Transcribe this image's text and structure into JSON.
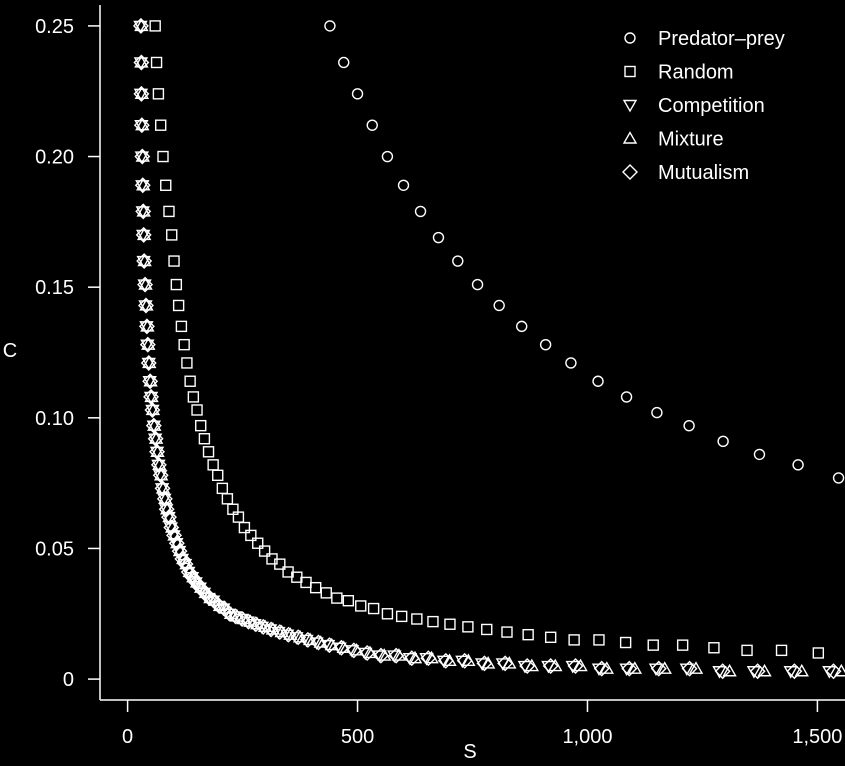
{
  "chart_data": {
    "type": "scatter",
    "xlabel": "S",
    "ylabel": "C",
    "xlim": [
      -60,
      1560
    ],
    "ylim": [
      -0.008,
      0.258
    ],
    "x_ticks": [
      {
        "value": 0,
        "label": "0"
      },
      {
        "value": 500,
        "label": "500"
      },
      {
        "value": 1000,
        "label": "1,000"
      },
      {
        "value": 1500,
        "label": "1,500"
      }
    ],
    "y_ticks": [
      {
        "value": 0,
        "label": "0"
      },
      {
        "value": 0.05,
        "label": "0.05"
      },
      {
        "value": 0.1,
        "label": "0.10"
      },
      {
        "value": 0.15,
        "label": "0.15"
      },
      {
        "value": 0.2,
        "label": "0.20"
      },
      {
        "value": 0.25,
        "label": "0.25"
      }
    ],
    "legend_position": "top-right",
    "series": [
      {
        "name": "Predator–prey",
        "marker": "circle",
        "points": [
          [
            440,
            0.25
          ],
          [
            470,
            0.236
          ],
          [
            500,
            0.224
          ],
          [
            532,
            0.212
          ],
          [
            565,
            0.2
          ],
          [
            600,
            0.189
          ],
          [
            637,
            0.179
          ],
          [
            676,
            0.169
          ],
          [
            718,
            0.16
          ],
          [
            761,
            0.151
          ],
          [
            808,
            0.143
          ],
          [
            857,
            0.135
          ],
          [
            909,
            0.128
          ],
          [
            964,
            0.121
          ],
          [
            1023,
            0.114
          ],
          [
            1085,
            0.108
          ],
          [
            1151,
            0.102
          ],
          [
            1221,
            0.097
          ],
          [
            1295,
            0.091
          ],
          [
            1374,
            0.086
          ],
          [
            1458,
            0.082
          ],
          [
            1546,
            0.077
          ]
        ]
      },
      {
        "name": "Random",
        "marker": "square",
        "points": [
          [
            60,
            0.25
          ],
          [
            63,
            0.236
          ],
          [
            67,
            0.224
          ],
          [
            72,
            0.212
          ],
          [
            77,
            0.2
          ],
          [
            83,
            0.189
          ],
          [
            90,
            0.179
          ],
          [
            96,
            0.17
          ],
          [
            101,
            0.16
          ],
          [
            106,
            0.151
          ],
          [
            111,
            0.143
          ],
          [
            117,
            0.135
          ],
          [
            123,
            0.128
          ],
          [
            129,
            0.121
          ],
          [
            136,
            0.114
          ],
          [
            143,
            0.108
          ],
          [
            151,
            0.103
          ],
          [
            159,
            0.097
          ],
          [
            167,
            0.092
          ],
          [
            176,
            0.087
          ],
          [
            186,
            0.082
          ],
          [
            196,
            0.078
          ],
          [
            206,
            0.073
          ],
          [
            217,
            0.069
          ],
          [
            229,
            0.065
          ],
          [
            241,
            0.062
          ],
          [
            254,
            0.058
          ],
          [
            268,
            0.055
          ],
          [
            283,
            0.052
          ],
          [
            298,
            0.049
          ],
          [
            314,
            0.046
          ],
          [
            331,
            0.044
          ],
          [
            349,
            0.041
          ],
          [
            368,
            0.039
          ],
          [
            388,
            0.037
          ],
          [
            409,
            0.035
          ],
          [
            432,
            0.033
          ],
          [
            455,
            0.031
          ],
          [
            480,
            0.03
          ],
          [
            507,
            0.028
          ],
          [
            535,
            0.027
          ],
          [
            565,
            0.025
          ],
          [
            596,
            0.024
          ],
          [
            629,
            0.023
          ],
          [
            664,
            0.022
          ],
          [
            701,
            0.021
          ],
          [
            740,
            0.02
          ],
          [
            781,
            0.019
          ],
          [
            825,
            0.018
          ],
          [
            871,
            0.017
          ],
          [
            920,
            0.016
          ],
          [
            971,
            0.015
          ],
          [
            1025,
            0.015
          ],
          [
            1083,
            0.014
          ],
          [
            1143,
            0.013
          ],
          [
            1207,
            0.013
          ],
          [
            1275,
            0.012
          ],
          [
            1347,
            0.011
          ],
          [
            1422,
            0.011
          ],
          [
            1502,
            0.01
          ]
        ]
      },
      {
        "name": "Competition",
        "marker": "triangle-down",
        "points": [
          [
            28,
            0.25
          ],
          [
            29,
            0.236
          ],
          [
            29,
            0.224
          ],
          [
            30,
            0.212
          ],
          [
            31,
            0.2
          ],
          [
            32,
            0.189
          ],
          [
            33,
            0.179
          ],
          [
            34,
            0.17
          ],
          [
            35,
            0.16
          ],
          [
            37,
            0.151
          ],
          [
            39,
            0.143
          ],
          [
            41,
            0.135
          ],
          [
            43,
            0.128
          ],
          [
            46,
            0.121
          ],
          [
            48,
            0.114
          ],
          [
            51,
            0.108
          ],
          [
            54,
            0.103
          ],
          [
            57,
            0.097
          ],
          [
            60,
            0.092
          ],
          [
            64,
            0.087
          ],
          [
            67,
            0.082
          ],
          [
            71,
            0.078
          ],
          [
            75,
            0.073
          ],
          [
            80,
            0.069
          ],
          [
            84,
            0.065
          ],
          [
            89,
            0.062
          ],
          [
            94,
            0.058
          ],
          [
            100,
            0.055
          ],
          [
            106,
            0.052
          ],
          [
            112,
            0.049
          ],
          [
            118,
            0.046
          ],
          [
            125,
            0.044
          ],
          [
            132,
            0.041
          ],
          [
            140,
            0.039
          ],
          [
            148,
            0.037
          ],
          [
            157,
            0.035
          ],
          [
            166,
            0.033
          ],
          [
            176,
            0.031
          ],
          [
            186,
            0.03
          ],
          [
            197,
            0.028
          ],
          [
            208,
            0.027
          ],
          [
            220,
            0.025
          ],
          [
            233,
            0.024
          ],
          [
            247,
            0.023
          ],
          [
            261,
            0.022
          ],
          [
            276,
            0.021
          ],
          [
            292,
            0.02
          ],
          [
            310,
            0.019
          ],
          [
            328,
            0.018
          ],
          [
            347,
            0.017
          ],
          [
            367,
            0.016
          ],
          [
            389,
            0.015
          ],
          [
            411,
            0.014
          ],
          [
            436,
            0.013
          ],
          [
            461,
            0.012
          ],
          [
            488,
            0.011
          ],
          [
            517,
            0.01
          ],
          [
            548,
            0.009
          ],
          [
            580,
            0.009
          ],
          [
            614,
            0.008
          ],
          [
            650,
            0.008
          ],
          [
            688,
            0.007
          ],
          [
            728,
            0.007
          ],
          [
            771,
            0.006
          ],
          [
            816,
            0.006
          ],
          [
            864,
            0.005
          ],
          [
            915,
            0.005
          ],
          [
            968,
            0.005
          ],
          [
            1025,
            0.004
          ],
          [
            1085,
            0.004
          ],
          [
            1149,
            0.004
          ],
          [
            1216,
            0.004
          ],
          [
            1287,
            0.003
          ],
          [
            1362,
            0.003
          ],
          [
            1442,
            0.003
          ],
          [
            1526,
            0.003
          ]
        ]
      },
      {
        "name": "Mixture",
        "marker": "triangle-up",
        "points": [
          [
            30,
            0.25
          ],
          [
            30,
            0.236
          ],
          [
            31,
            0.224
          ],
          [
            32,
            0.212
          ],
          [
            33,
            0.2
          ],
          [
            34,
            0.189
          ],
          [
            35,
            0.179
          ],
          [
            36,
            0.17
          ],
          [
            37,
            0.16
          ],
          [
            39,
            0.151
          ],
          [
            41,
            0.143
          ],
          [
            43,
            0.135
          ],
          [
            45,
            0.128
          ],
          [
            47,
            0.121
          ],
          [
            50,
            0.114
          ],
          [
            52,
            0.108
          ],
          [
            55,
            0.103
          ],
          [
            58,
            0.097
          ],
          [
            62,
            0.092
          ],
          [
            65,
            0.087
          ],
          [
            69,
            0.082
          ],
          [
            73,
            0.078
          ],
          [
            77,
            0.073
          ],
          [
            82,
            0.069
          ],
          [
            86,
            0.065
          ],
          [
            91,
            0.062
          ],
          [
            97,
            0.058
          ],
          [
            102,
            0.055
          ],
          [
            108,
            0.052
          ],
          [
            114,
            0.049
          ],
          [
            121,
            0.046
          ],
          [
            128,
            0.044
          ],
          [
            135,
            0.041
          ],
          [
            143,
            0.039
          ],
          [
            151,
            0.037
          ],
          [
            160,
            0.035
          ],
          [
            170,
            0.033
          ],
          [
            180,
            0.031
          ],
          [
            190,
            0.03
          ],
          [
            201,
            0.028
          ],
          [
            213,
            0.027
          ],
          [
            225,
            0.025
          ],
          [
            238,
            0.024
          ],
          [
            252,
            0.023
          ],
          [
            267,
            0.022
          ],
          [
            282,
            0.021
          ],
          [
            299,
            0.02
          ],
          [
            316,
            0.019
          ],
          [
            335,
            0.018
          ],
          [
            354,
            0.017
          ],
          [
            375,
            0.016
          ],
          [
            397,
            0.015
          ],
          [
            420,
            0.014
          ],
          [
            444,
            0.013
          ],
          [
            470,
            0.012
          ],
          [
            498,
            0.011
          ],
          [
            527,
            0.01
          ],
          [
            558,
            0.009
          ],
          [
            590,
            0.009
          ],
          [
            625,
            0.008
          ],
          [
            661,
            0.008
          ],
          [
            700,
            0.007
          ],
          [
            741,
            0.007
          ],
          [
            784,
            0.006
          ],
          [
            830,
            0.006
          ],
          [
            879,
            0.005
          ],
          [
            930,
            0.005
          ],
          [
            985,
            0.005
          ],
          [
            1042,
            0.004
          ],
          [
            1103,
            0.004
          ],
          [
            1168,
            0.004
          ],
          [
            1236,
            0.004
          ],
          [
            1309,
            0.003
          ],
          [
            1385,
            0.003
          ],
          [
            1466,
            0.003
          ],
          [
            1552,
            0.003
          ]
        ]
      },
      {
        "name": "Mutualism",
        "marker": "diamond",
        "points": [
          [
            29,
            0.25
          ],
          [
            30,
            0.236
          ],
          [
            30,
            0.224
          ],
          [
            31,
            0.212
          ],
          [
            32,
            0.2
          ],
          [
            33,
            0.189
          ],
          [
            34,
            0.179
          ],
          [
            35,
            0.17
          ],
          [
            36,
            0.16
          ],
          [
            38,
            0.151
          ],
          [
            40,
            0.143
          ],
          [
            42,
            0.135
          ],
          [
            44,
            0.128
          ],
          [
            46,
            0.121
          ],
          [
            49,
            0.114
          ],
          [
            51,
            0.108
          ],
          [
            54,
            0.103
          ],
          [
            57,
            0.097
          ],
          [
            61,
            0.092
          ],
          [
            64,
            0.087
          ],
          [
            68,
            0.082
          ],
          [
            72,
            0.078
          ],
          [
            76,
            0.073
          ],
          [
            81,
            0.069
          ],
          [
            85,
            0.065
          ],
          [
            90,
            0.062
          ],
          [
            95,
            0.058
          ],
          [
            101,
            0.055
          ],
          [
            107,
            0.052
          ],
          [
            113,
            0.049
          ],
          [
            119,
            0.046
          ],
          [
            126,
            0.044
          ],
          [
            133,
            0.041
          ],
          [
            141,
            0.039
          ],
          [
            149,
            0.037
          ],
          [
            158,
            0.035
          ],
          [
            168,
            0.033
          ],
          [
            178,
            0.031
          ],
          [
            188,
            0.03
          ],
          [
            199,
            0.028
          ],
          [
            210,
            0.027
          ],
          [
            222,
            0.025
          ],
          [
            235,
            0.024
          ],
          [
            249,
            0.023
          ],
          [
            263,
            0.022
          ],
          [
            279,
            0.021
          ],
          [
            295,
            0.02
          ],
          [
            312,
            0.019
          ],
          [
            331,
            0.018
          ],
          [
            350,
            0.017
          ],
          [
            371,
            0.016
          ],
          [
            392,
            0.015
          ],
          [
            415,
            0.014
          ],
          [
            439,
            0.013
          ],
          [
            465,
            0.012
          ],
          [
            492,
            0.011
          ],
          [
            521,
            0.01
          ],
          [
            551,
            0.009
          ],
          [
            584,
            0.009
          ],
          [
            618,
            0.008
          ],
          [
            654,
            0.008
          ],
          [
            692,
            0.007
          ],
          [
            733,
            0.007
          ],
          [
            776,
            0.006
          ],
          [
            821,
            0.006
          ],
          [
            869,
            0.005
          ],
          [
            920,
            0.005
          ],
          [
            974,
            0.005
          ],
          [
            1031,
            0.004
          ],
          [
            1091,
            0.004
          ],
          [
            1155,
            0.004
          ],
          [
            1222,
            0.004
          ],
          [
            1294,
            0.003
          ],
          [
            1370,
            0.003
          ],
          [
            1450,
            0.003
          ],
          [
            1535,
            0.003
          ]
        ]
      }
    ]
  }
}
